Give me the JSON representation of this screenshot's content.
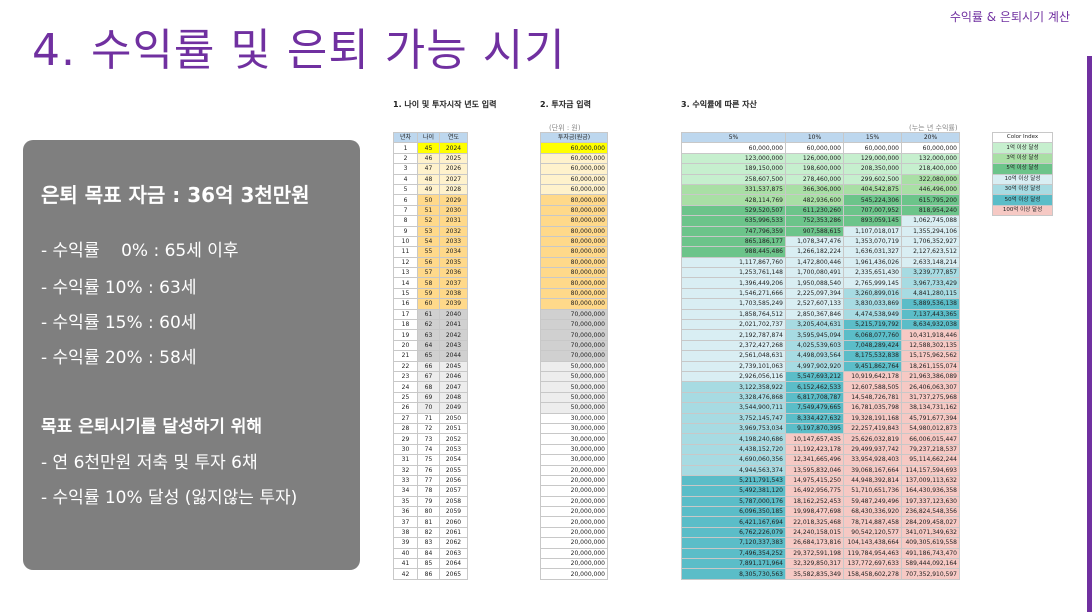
{
  "slide": {
    "title": "4. 수익률 및 은퇴 가능 시기",
    "tag": "수익률 & 은퇴시기 계산"
  },
  "summary": {
    "title": "은퇴 목표 자금 : 36억 3천만원",
    "lines": [
      "- 수익률    0% : 65세 이후",
      "- 수익률 10% : 63세",
      "- 수익률 15% : 60세",
      "- 수익률 20% : 58세"
    ],
    "subtitle": "목표 은퇴시기를 달성하기 위해",
    "sub_lines": [
      "- 연 6천만원 저축 및 투자 6채",
      "- 수익률 10% 달성 (잃지않는 투자)"
    ]
  },
  "sheet": {
    "section1_title": "1. 나이 및 투자시작 년도 입력",
    "section2_title": "2. 투자금 입력",
    "section3_title": "3. 수익률에 따른 자산",
    "invest_note": "(단위 : 원)",
    "assets_note": "(누는 년 수익률)",
    "age_headers": [
      "년차",
      "나이",
      "연도"
    ],
    "invest_header": "투자금(원금)",
    "asset_headers": [
      "5%",
      "10%",
      "15%",
      "20%"
    ],
    "legend_title": "Color Index",
    "legend": [
      {
        "label": "1억 이상 달성",
        "color": "#c6efce"
      },
      {
        "label": "3억 이상 달성",
        "color": "#a9dfa5"
      },
      {
        "label": "5억 이상 달성",
        "color": "#6cc48a"
      },
      {
        "label": "10억 이상 달성",
        "color": "#d9eef3"
      },
      {
        "label": "30억 이상 달성",
        "color": "#a7dbe2"
      },
      {
        "label": "50억 이상 달성",
        "color": "#5bbdc8"
      },
      {
        "label": "100억 이상 달성",
        "color": "#f6c9c4"
      }
    ],
    "rows": [
      {
        "n": "1",
        "age": "45",
        "year": "2024",
        "inv": "60,000,000",
        "a": [
          "60,000,000",
          "60,000,000",
          "60,000,000",
          "60,000,000"
        ]
      },
      {
        "n": "2",
        "age": "46",
        "year": "2025",
        "inv": "60,000,000",
        "a": [
          "123,000,000",
          "126,000,000",
          "129,000,000",
          "132,000,000"
        ]
      },
      {
        "n": "3",
        "age": "47",
        "year": "2026",
        "inv": "60,000,000",
        "a": [
          "189,150,000",
          "198,600,000",
          "208,350,000",
          "218,400,000"
        ]
      },
      {
        "n": "4",
        "age": "48",
        "year": "2027",
        "inv": "60,000,000",
        "a": [
          "258,607,500",
          "278,460,000",
          "299,602,500",
          "322,080,000"
        ]
      },
      {
        "n": "5",
        "age": "49",
        "year": "2028",
        "inv": "60,000,000",
        "a": [
          "331,537,875",
          "366,306,000",
          "404,542,875",
          "446,496,000"
        ]
      },
      {
        "n": "6",
        "age": "50",
        "year": "2029",
        "inv": "80,000,000",
        "a": [
          "428,114,769",
          "482,936,600",
          "545,224,306",
          "615,795,200"
        ]
      },
      {
        "n": "7",
        "age": "51",
        "year": "2030",
        "inv": "80,000,000",
        "a": [
          "529,520,507",
          "611,230,260",
          "707,007,952",
          "818,954,240"
        ]
      },
      {
        "n": "8",
        "age": "52",
        "year": "2031",
        "inv": "80,000,000",
        "a": [
          "635,996,533",
          "752,353,286",
          "893,059,145",
          "1,062,745,088"
        ]
      },
      {
        "n": "9",
        "age": "53",
        "year": "2032",
        "inv": "80,000,000",
        "a": [
          "747,796,359",
          "907,588,615",
          "1,107,018,017",
          "1,355,294,106"
        ]
      },
      {
        "n": "10",
        "age": "54",
        "year": "2033",
        "inv": "80,000,000",
        "a": [
          "865,186,177",
          "1,078,347,476",
          "1,353,070,719",
          "1,706,352,927"
        ]
      },
      {
        "n": "11",
        "age": "55",
        "year": "2034",
        "inv": "80,000,000",
        "a": [
          "988,445,486",
          "1,266,182,224",
          "1,636,031,327",
          "2,127,623,512"
        ]
      },
      {
        "n": "12",
        "age": "56",
        "year": "2035",
        "inv": "80,000,000",
        "a": [
          "1,117,867,760",
          "1,472,800,446",
          "1,961,436,026",
          "2,633,148,214"
        ]
      },
      {
        "n": "13",
        "age": "57",
        "year": "2036",
        "inv": "80,000,000",
        "a": [
          "1,253,761,148",
          "1,700,080,491",
          "2,335,651,430",
          "3,239,777,857"
        ]
      },
      {
        "n": "14",
        "age": "58",
        "year": "2037",
        "inv": "80,000,000",
        "a": [
          "1,396,449,206",
          "1,950,088,540",
          "2,765,999,145",
          "3,967,733,429"
        ]
      },
      {
        "n": "15",
        "age": "59",
        "year": "2038",
        "inv": "80,000,000",
        "a": [
          "1,546,271,666",
          "2,225,097,394",
          "3,260,899,016",
          "4,841,280,115"
        ]
      },
      {
        "n": "16",
        "age": "60",
        "year": "2039",
        "inv": "80,000,000",
        "a": [
          "1,703,585,249",
          "2,527,607,133",
          "3,830,033,869",
          "5,889,536,138"
        ]
      },
      {
        "n": "17",
        "age": "61",
        "year": "2040",
        "inv": "70,000,000",
        "a": [
          "1,858,764,512",
          "2,850,367,846",
          "4,474,538,949",
          "7,137,443,365"
        ]
      },
      {
        "n": "18",
        "age": "62",
        "year": "2041",
        "inv": "70,000,000",
        "a": [
          "2,021,702,737",
          "3,205,404,631",
          "5,215,719,792",
          "8,634,932,038"
        ]
      },
      {
        "n": "19",
        "age": "63",
        "year": "2042",
        "inv": "70,000,000",
        "a": [
          "2,192,787,874",
          "3,595,945,094",
          "6,068,077,760",
          "10,431,918,446"
        ]
      },
      {
        "n": "20",
        "age": "64",
        "year": "2043",
        "inv": "70,000,000",
        "a": [
          "2,372,427,268",
          "4,025,539,603",
          "7,048,289,424",
          "12,588,302,135"
        ]
      },
      {
        "n": "21",
        "age": "65",
        "year": "2044",
        "inv": "70,000,000",
        "a": [
          "2,561,048,631",
          "4,498,093,564",
          "8,175,532,838",
          "15,175,962,562"
        ]
      },
      {
        "n": "22",
        "age": "66",
        "year": "2045",
        "inv": "50,000,000",
        "a": [
          "2,739,101,063",
          "4,997,902,920",
          "9,451,862,764",
          "18,261,155,074"
        ]
      },
      {
        "n": "23",
        "age": "67",
        "year": "2046",
        "inv": "50,000,000",
        "a": [
          "2,926,056,116",
          "5,547,693,212",
          "10,919,642,178",
          "21,963,386,089"
        ]
      },
      {
        "n": "24",
        "age": "68",
        "year": "2047",
        "inv": "50,000,000",
        "a": [
          "3,122,358,922",
          "6,152,462,533",
          "12,607,588,505",
          "26,406,063,307"
        ]
      },
      {
        "n": "25",
        "age": "69",
        "year": "2048",
        "inv": "50,000,000",
        "a": [
          "3,328,476,868",
          "6,817,708,787",
          "14,548,726,781",
          "31,737,275,968"
        ]
      },
      {
        "n": "26",
        "age": "70",
        "year": "2049",
        "inv": "50,000,000",
        "a": [
          "3,544,900,711",
          "7,549,479,665",
          "16,781,035,798",
          "38,134,731,162"
        ]
      },
      {
        "n": "27",
        "age": "71",
        "year": "2050",
        "inv": "30,000,000",
        "a": [
          "3,752,145,747",
          "8,334,427,632",
          "19,328,191,168",
          "45,791,677,394"
        ]
      },
      {
        "n": "28",
        "age": "72",
        "year": "2051",
        "inv": "30,000,000",
        "a": [
          "3,969,753,034",
          "9,197,870,395",
          "22,257,419,843",
          "54,980,012,873"
        ]
      },
      {
        "n": "29",
        "age": "73",
        "year": "2052",
        "inv": "30,000,000",
        "a": [
          "4,198,240,686",
          "10,147,657,435",
          "25,626,032,819",
          "66,006,015,447"
        ]
      },
      {
        "n": "30",
        "age": "74",
        "year": "2053",
        "inv": "30,000,000",
        "a": [
          "4,438,152,720",
          "11,192,423,178",
          "29,499,937,742",
          "79,237,218,537"
        ]
      },
      {
        "n": "31",
        "age": "75",
        "year": "2054",
        "inv": "30,000,000",
        "a": [
          "4,690,060,356",
          "12,341,665,496",
          "33,954,928,403",
          "95,114,662,244"
        ]
      },
      {
        "n": "32",
        "age": "76",
        "year": "2055",
        "inv": "20,000,000",
        "a": [
          "4,944,563,374",
          "13,595,832,046",
          "39,068,167,664",
          "114,157,594,693"
        ]
      },
      {
        "n": "33",
        "age": "77",
        "year": "2056",
        "inv": "20,000,000",
        "a": [
          "5,211,791,543",
          "14,975,415,250",
          "44,948,392,814",
          "137,009,113,632"
        ]
      },
      {
        "n": "34",
        "age": "78",
        "year": "2057",
        "inv": "20,000,000",
        "a": [
          "5,492,381,120",
          "16,492,956,775",
          "51,710,651,736",
          "164,430,936,358"
        ]
      },
      {
        "n": "35",
        "age": "79",
        "year": "2058",
        "inv": "20,000,000",
        "a": [
          "5,787,000,176",
          "18,162,252,453",
          "59,487,249,496",
          "197,337,123,630"
        ]
      },
      {
        "n": "36",
        "age": "80",
        "year": "2059",
        "inv": "20,000,000",
        "a": [
          "6,096,350,185",
          "19,998,477,698",
          "68,430,336,920",
          "236,824,548,356"
        ]
      },
      {
        "n": "37",
        "age": "81",
        "year": "2060",
        "inv": "20,000,000",
        "a": [
          "6,421,167,694",
          "22,018,325,468",
          "78,714,887,458",
          "284,209,458,027"
        ]
      },
      {
        "n": "38",
        "age": "82",
        "year": "2061",
        "inv": "20,000,000",
        "a": [
          "6,762,226,079",
          "24,240,158,015",
          "90,542,120,577",
          "341,071,349,632"
        ]
      },
      {
        "n": "39",
        "age": "83",
        "year": "2062",
        "inv": "20,000,000",
        "a": [
          "7,120,337,383",
          "26,684,173,816",
          "104,143,438,664",
          "409,305,619,558"
        ]
      },
      {
        "n": "40",
        "age": "84",
        "year": "2063",
        "inv": "20,000,000",
        "a": [
          "7,496,354,252",
          "29,372,591,198",
          "119,784,954,463",
          "491,186,743,470"
        ]
      },
      {
        "n": "41",
        "age": "85",
        "year": "2064",
        "inv": "20,000,000",
        "a": [
          "7,891,171,964",
          "32,329,850,317",
          "137,772,697,633",
          "589,444,092,164"
        ]
      },
      {
        "n": "42",
        "age": "86",
        "year": "2065",
        "inv": "20,000,000",
        "a": [
          "8,305,730,563",
          "35,582,835,349",
          "158,458,602,278",
          "707,352,910,597"
        ]
      }
    ]
  }
}
